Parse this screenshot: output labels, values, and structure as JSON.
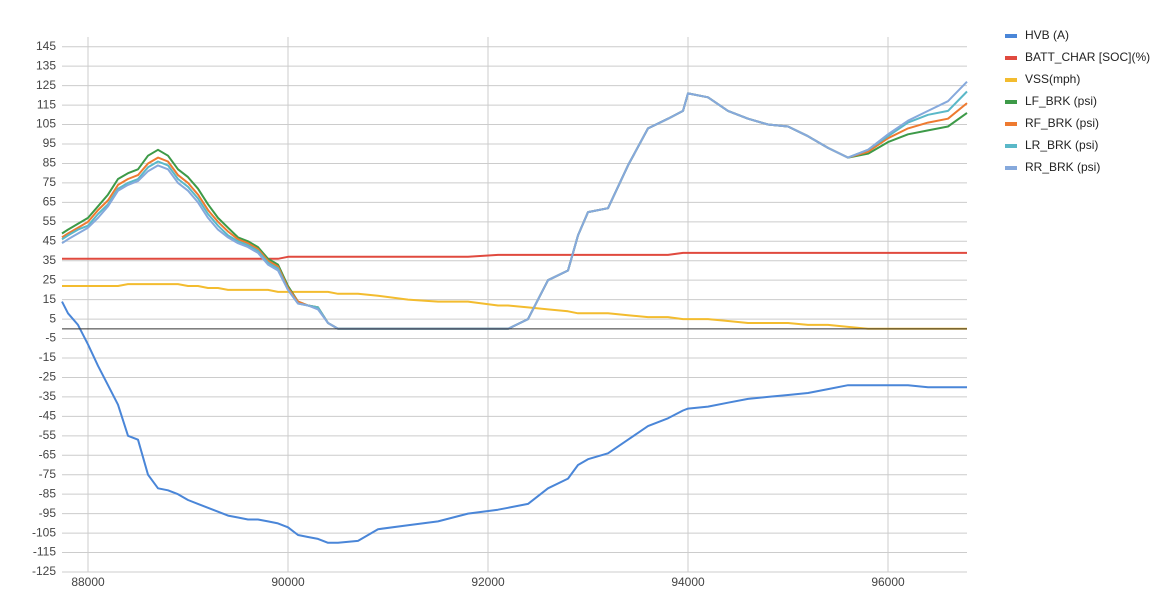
{
  "chart_data": {
    "type": "line",
    "x": [
      87740,
      87800,
      87900,
      88000,
      88100,
      88200,
      88300,
      88400,
      88500,
      88600,
      88700,
      88800,
      88900,
      89000,
      89100,
      89200,
      89300,
      89400,
      89500,
      89600,
      89700,
      89800,
      89900,
      90000,
      90100,
      90200,
      90300,
      90400,
      90500,
      90700,
      90900,
      91200,
      91500,
      91800,
      92100,
      92200,
      92400,
      92600,
      92800,
      92900,
      93000,
      93200,
      93400,
      93600,
      93800,
      93950,
      94000,
      94200,
      94400,
      94600,
      94800,
      95000,
      95200,
      95400,
      95600,
      95800,
      96000,
      96200,
      96400,
      96600,
      96790
    ],
    "series": [
      {
        "name": "HVB (A)",
        "color": "#4a86d8",
        "values": [
          14,
          8,
          2,
          -8,
          -19,
          -29,
          -39,
          -55,
          -57,
          -75,
          -82,
          -83,
          -85,
          -88,
          -90,
          -92,
          -94,
          -96,
          -97,
          -98,
          -98,
          -99,
          -100,
          -102,
          -106,
          -107,
          -108,
          -110,
          -110,
          -109,
          -103,
          -101,
          -99,
          -95,
          -93,
          -92,
          -90,
          -82,
          -77,
          -70,
          -67,
          -64,
          -57,
          -50,
          -46,
          -42,
          -41,
          -40,
          -38,
          -36,
          -35,
          -34,
          -33,
          -31,
          -29,
          -29,
          -29,
          -29,
          -30,
          -30,
          -30
        ]
      },
      {
        "name": "BATT_CHAR [SOC](%)",
        "color": "#e04a3f",
        "values": [
          36,
          36,
          36,
          36,
          36,
          36,
          36,
          36,
          36,
          36,
          36,
          36,
          36,
          36,
          36,
          36,
          36,
          36,
          36,
          36,
          36,
          36,
          36,
          37,
          37,
          37,
          37,
          37,
          37,
          37,
          37,
          37,
          37,
          37,
          38,
          38,
          38,
          38,
          38,
          38,
          38,
          38,
          38,
          38,
          38,
          39,
          39,
          39,
          39,
          39,
          39,
          39,
          39,
          39,
          39,
          39,
          39,
          39,
          39,
          39,
          39
        ]
      },
      {
        "name": "VSS(mph)",
        "color": "#f3bc2f",
        "values": [
          22,
          22,
          22,
          22,
          22,
          22,
          22,
          23,
          23,
          23,
          23,
          23,
          23,
          22,
          22,
          21,
          21,
          20,
          20,
          20,
          20,
          20,
          19,
          19,
          19,
          19,
          19,
          19,
          18,
          18,
          17,
          15,
          14,
          14,
          12,
          12,
          11,
          10,
          9,
          8,
          8,
          8,
          7,
          6,
          6,
          5,
          5,
          5,
          4,
          3,
          3,
          3,
          2,
          2,
          1,
          0,
          0,
          0,
          0,
          0,
          0
        ]
      },
      {
        "name": "LF_BRK (psi)",
        "color": "#3d9a48",
        "values": [
          49,
          51,
          54,
          57,
          63,
          69,
          77,
          80,
          82,
          89,
          92,
          89,
          82,
          78,
          72,
          64,
          57,
          52,
          47,
          45,
          42,
          36,
          33,
          22,
          14,
          12,
          11,
          3,
          0,
          0,
          0,
          0,
          0,
          0,
          0,
          0,
          5,
          25,
          30,
          48,
          60,
          62,
          84,
          103,
          108,
          112,
          121,
          119,
          112,
          108,
          105,
          104,
          99,
          93,
          88,
          90,
          96,
          100,
          102,
          104,
          111
        ]
      },
      {
        "name": "RF_BRK (psi)",
        "color": "#ee7a30",
        "values": [
          47,
          49,
          52,
          55,
          61,
          66,
          74,
          77,
          79,
          85,
          88,
          86,
          79,
          75,
          69,
          61,
          55,
          50,
          46,
          44,
          41,
          35,
          32,
          21,
          14,
          12,
          11,
          3,
          0,
          0,
          0,
          0,
          0,
          0,
          0,
          0,
          5,
          25,
          30,
          48,
          60,
          62,
          84,
          103,
          108,
          112,
          121,
          119,
          112,
          108,
          105,
          104,
          99,
          93,
          88,
          91,
          98,
          103,
          106,
          108,
          116
        ]
      },
      {
        "name": "LR_BRK (psi)",
        "color": "#5ab8c8",
        "values": [
          46,
          48,
          51,
          53,
          59,
          64,
          72,
          75,
          77,
          83,
          86,
          84,
          77,
          73,
          67,
          59,
          53,
          48,
          45,
          43,
          40,
          34,
          31,
          20,
          13,
          12,
          11,
          3,
          0,
          0,
          0,
          0,
          0,
          0,
          0,
          0,
          5,
          25,
          30,
          48,
          60,
          62,
          84,
          103,
          108,
          112,
          121,
          119,
          112,
          108,
          105,
          104,
          99,
          93,
          88,
          92,
          99,
          106,
          110,
          112,
          122
        ]
      },
      {
        "name": "RR_BRK (psi)",
        "color": "#86a9dc",
        "values": [
          44,
          46,
          49,
          52,
          57,
          63,
          71,
          74,
          76,
          81,
          84,
          82,
          75,
          71,
          65,
          57,
          51,
          47,
          44,
          42,
          39,
          33,
          30,
          20,
          13,
          12,
          10,
          3,
          0,
          0,
          0,
          0,
          0,
          0,
          0,
          0,
          5,
          25,
          30,
          48,
          60,
          62,
          84,
          103,
          108,
          112,
          121,
          119,
          112,
          108,
          105,
          104,
          99,
          93,
          88,
          92,
          100,
          107,
          112,
          117,
          127
        ]
      }
    ],
    "xlim": [
      87740,
      96790
    ],
    "xticks": [
      88000,
      90000,
      92000,
      94000,
      96000
    ],
    "ylim": [
      -125,
      150
    ],
    "yticks": [
      -125,
      -115,
      -105,
      -95,
      -85,
      -75,
      -65,
      -55,
      -45,
      -35,
      -25,
      -15,
      -5,
      5,
      15,
      25,
      35,
      45,
      55,
      65,
      75,
      85,
      95,
      105,
      115,
      125,
      135,
      145
    ],
    "grid": true,
    "legend": "right"
  }
}
